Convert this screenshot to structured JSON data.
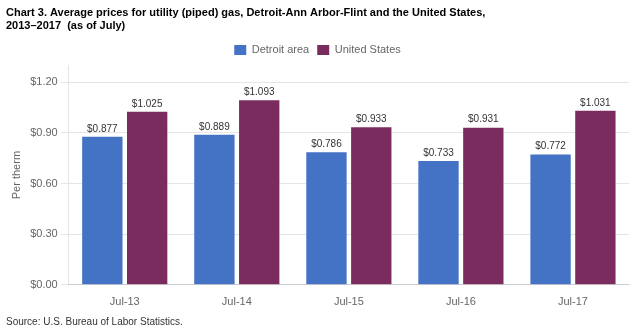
{
  "chart_data": {
    "type": "bar",
    "title": [
      "Chart 3. Average prices for utility (piped) gas, Detroit-Ann Arbor-Flint and the United States,",
      "2013–2017  (as of July)"
    ],
    "ylabel": "Per therm",
    "source": "Source: U.S. Bureau of Labor Statistics.",
    "categories": [
      "Jul-13",
      "Jul-14",
      "Jul-15",
      "Jul-16",
      "Jul-17"
    ],
    "series": [
      {
        "name": "Detroit area",
        "color": "#4472C4",
        "values": [
          0.877,
          0.889,
          0.786,
          0.733,
          0.772
        ],
        "value_labels": [
          "$0.877",
          "$0.889",
          "$0.786",
          "$0.733",
          "$0.772"
        ]
      },
      {
        "name": "United States",
        "color": "#7B2C5E",
        "values": [
          1.025,
          1.093,
          0.933,
          0.931,
          1.031
        ],
        "value_labels": [
          "$1.025",
          "$1.093",
          "$0.933",
          "$0.931",
          "$1.031"
        ]
      }
    ],
    "ylim": [
      0,
      1.3
    ],
    "yticks": [
      {
        "value": 0.0,
        "label": "$0.00"
      },
      {
        "value": 0.3,
        "label": "$0.30"
      },
      {
        "value": 0.6,
        "label": "$0.60"
      },
      {
        "value": 0.9,
        "label": "$0.90"
      },
      {
        "value": 1.2,
        "label": "$1.20"
      }
    ],
    "grid": true,
    "legend": "top",
    "data_labels": true
  }
}
